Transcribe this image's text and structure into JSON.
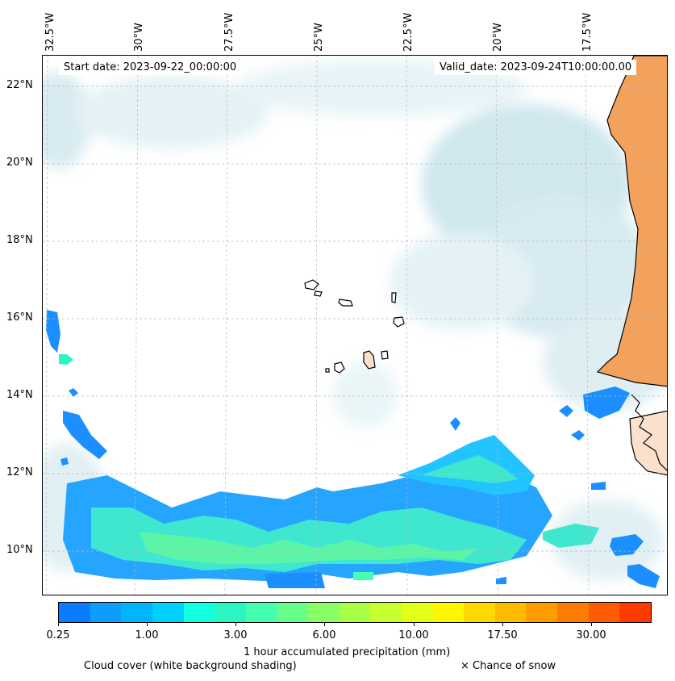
{
  "map": {
    "start_date": "Start date: 2023-09-22_00:00:00",
    "valid_date": "Valid_date: 2023-09-24T10:00:00.00",
    "lon_labels": [
      "32.5°W",
      "30°W",
      "27.5°W",
      "25°W",
      "22.5°W",
      "20°W",
      "17.5°W"
    ],
    "lat_labels": [
      "22°N",
      "20°N",
      "18°N",
      "16°N",
      "14°N",
      "12°N",
      "10°N"
    ]
  },
  "colorbar": {
    "label": "1 hour accumulated precipitation (mm)",
    "ticks": [
      "0.25",
      "1.00",
      "3.00",
      "6.00",
      "10.00",
      "17.50",
      "30.00"
    ],
    "colors": [
      "#0a7cff",
      "#0c9dff",
      "#00b4ff",
      "#00cfff",
      "#12ffe0",
      "#2cf5c4",
      "#44ffb0",
      "#66ff88",
      "#88ff66",
      "#a8ff48",
      "#c8ff30",
      "#e4ff18",
      "#fff500",
      "#ffd800",
      "#ffbb00",
      "#ff9d00",
      "#ff7c00",
      "#ff5c00",
      "#ff3a00"
    ]
  },
  "legend": {
    "cloud_cover": "Cloud cover (white background shading)",
    "snow": "× Chance of snow"
  },
  "colors": {
    "cloud": "#a8d4e0",
    "land": "#f3a25e",
    "precip_light": "#0a86ff",
    "precip_mid": "#2ef0c8"
  }
}
